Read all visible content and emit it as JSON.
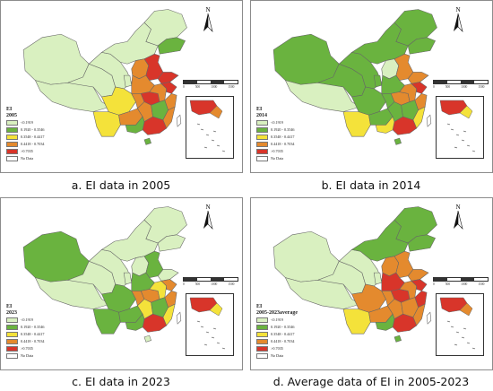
{
  "colors": {
    "c1": "#d9f0c0",
    "c2": "#6ab33f",
    "c3": "#f4e23a",
    "c4": "#e48a2e",
    "c5": "#d8352a",
    "none": "#ffffff",
    "border": "#666666"
  },
  "scale": {
    "ticks": [
      "0",
      "500",
      "1000",
      "1500"
    ],
    "unit": "km"
  },
  "panels": [
    {
      "caption": "a. EI data in 2005",
      "legend_title": "EI\n2005",
      "legend": [
        "<0.1919",
        "0.1920 - 0.3546",
        "0.3548 - 0.4417",
        "0.4418 - 0.7034",
        ">0.7035",
        "No Data"
      ],
      "north": "N",
      "regions": {
        "xj": "c1",
        "xz": "c1",
        "qh": "c1",
        "nm": "c1",
        "hlj": "c1",
        "jl": "c2",
        "gs": "c1",
        "nx": "c1",
        "sx": "c4",
        "hb": "c5",
        "sd": "c5",
        "sc": "c3",
        "yn": "c3",
        "gz": "c4",
        "cq": "c4",
        "hn": "c4",
        "hub": "c5",
        "hun": "c4",
        "ah": "c4",
        "js": "c5",
        "zj": "c4",
        "jx": "c2",
        "fj": "c4",
        "gd": "c5",
        "gx": "c2",
        "hain": "c2",
        "tw": "none"
      }
    },
    {
      "caption": "b. EI data in 2014",
      "legend_title": "EI\n2014",
      "legend": [
        "<0.1919",
        "0.1920 - 0.3546",
        "0.3548 - 0.4417",
        "0.4418 - 0.7034",
        ">0.7035",
        "No Data"
      ],
      "north": "N",
      "regions": {
        "xj": "c2",
        "xz": "c1",
        "qh": "c2",
        "nm": "c2",
        "hlj": "c2",
        "jl": "c2",
        "gs": "c2",
        "nx": "c2",
        "sx": "c1",
        "hb": "c4",
        "sd": "c4",
        "sc": "c2",
        "yn": "c3",
        "gz": "c2",
        "cq": "c2",
        "hn": "c2",
        "hub": "c4",
        "hun": "c2",
        "ah": "c4",
        "js": "c5",
        "zj": "c4",
        "jx": "c2",
        "fj": "c3",
        "gd": "c5",
        "gx": "c3",
        "hain": "c2",
        "tw": "none"
      }
    },
    {
      "caption": "c. EI data in 2023",
      "legend_title": "EI\n2023",
      "legend": [
        "<0.1919",
        "0.1920 - 0.3546",
        "0.3548 - 0.4417",
        "0.4418 - 0.7034",
        ">0.7035",
        "No Data"
      ],
      "north": "N",
      "regions": {
        "xj": "c2",
        "xz": "c1",
        "qh": "c1",
        "nm": "c1",
        "hlj": "c1",
        "jl": "c1",
        "gs": "c1",
        "nx": "c1",
        "sx": "c1",
        "hb": "c2",
        "sd": "c1",
        "sc": "c2",
        "yn": "c2",
        "gz": "c2",
        "cq": "c4",
        "hn": "c2",
        "hub": "c4",
        "hun": "c3",
        "ah": "c3",
        "js": "c4",
        "zj": "c4",
        "jx": "c2",
        "fj": "c3",
        "gd": "c5",
        "gx": "c2",
        "hain": "c1",
        "tw": "none"
      }
    },
    {
      "caption": "d. Average data of EI in 2005-2023",
      "legend_title": "EI\n2005-2023average",
      "legend": [
        "<0.1919",
        "0.1920 - 0.3546",
        "0.3548 - 0.4417",
        "0.4418 - 0.7034",
        ">0.7035",
        "No Data"
      ],
      "north": "N",
      "regions": {
        "xj": "c1",
        "xz": "c1",
        "qh": "c1",
        "nm": "c2",
        "hlj": "c2",
        "jl": "c2",
        "gs": "c1",
        "nx": "c1",
        "sx": "c4",
        "hb": "c4",
        "sd": "c4",
        "sc": "c4",
        "yn": "c3",
        "gz": "c4",
        "cq": "c4",
        "hn": "c5",
        "hub": "c5",
        "hun": "c4",
        "ah": "c4",
        "js": "c5",
        "zj": "c5",
        "jx": "c4",
        "fj": "c4",
        "gd": "c5",
        "gx": "c2",
        "hain": "c2",
        "tw": "none"
      }
    }
  ]
}
